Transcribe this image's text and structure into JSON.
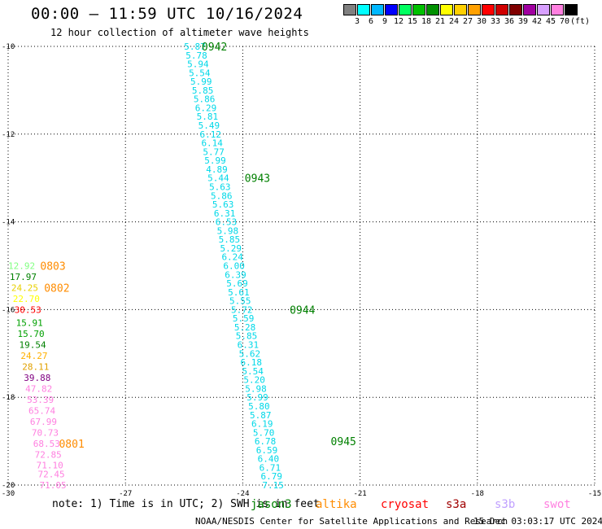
{
  "header": {
    "title": "00:00 – 11:59 UTC 10/16/2024",
    "subtitle": "12 hour collection of altimeter wave heights"
  },
  "color_scale": {
    "colors": [
      "#808080",
      "#00ffff",
      "#00b8ff",
      "#0000ff",
      "#00ff60",
      "#00c000",
      "#009000",
      "#ffff00",
      "#ffd000",
      "#ffa000",
      "#ff0000",
      "#d00000",
      "#800000",
      "#a000a0",
      "#d8a0ff",
      "#ff80e0",
      "#000000"
    ],
    "labels": [
      "3",
      "6",
      "9",
      "12",
      "15",
      "18",
      "21",
      "24",
      "27",
      "30",
      "33",
      "36",
      "39",
      "42",
      "45",
      "70",
      "(ft)"
    ]
  },
  "chart_data": {
    "type": "scatter",
    "title": "00:00 – 11:59 UTC 10/16/2024",
    "subtitle": "12 hour collection of altimeter wave heights",
    "xlim": [
      -30,
      -15
    ],
    "ylim": [
      -20,
      -10
    ],
    "x_ticks": [
      "-30",
      "-27",
      "-24",
      "-21",
      "-18",
      "-15"
    ],
    "y_ticks": [
      "-10",
      "-12",
      "-14",
      "-16",
      "-18",
      "-20"
    ],
    "grid": true,
    "tracks": [
      {
        "satellite": "jason3",
        "color": "#00d8e8",
        "points": [
          {
            "x": -25.5,
            "y": -10.0,
            "v": "5.87"
          },
          {
            "x": -25.46,
            "y": -10.2,
            "v": "5.78"
          },
          {
            "x": -25.42,
            "y": -10.4,
            "v": "5.94"
          },
          {
            "x": -25.38,
            "y": -10.6,
            "v": "5.54"
          },
          {
            "x": -25.34,
            "y": -10.8,
            "v": "5.99"
          },
          {
            "x": -25.3,
            "y": -11.0,
            "v": "5.85"
          },
          {
            "x": -25.26,
            "y": -11.2,
            "v": "5.86"
          },
          {
            "x": -25.22,
            "y": -11.4,
            "v": "6.29"
          },
          {
            "x": -25.18,
            "y": -11.6,
            "v": "5.81"
          },
          {
            "x": -25.14,
            "y": -11.8,
            "v": "5.49"
          },
          {
            "x": -25.1,
            "y": -12.0,
            "v": "6.12"
          },
          {
            "x": -25.06,
            "y": -12.2,
            "v": "6.14"
          },
          {
            "x": -25.02,
            "y": -12.4,
            "v": "5.77"
          },
          {
            "x": -24.98,
            "y": -12.6,
            "v": "5.99"
          },
          {
            "x": -24.94,
            "y": -12.8,
            "v": "4.89"
          },
          {
            "x": -24.9,
            "y": -13.0,
            "v": "5.44"
          },
          {
            "x": -24.86,
            "y": -13.2,
            "v": "5.63"
          },
          {
            "x": -24.82,
            "y": -13.4,
            "v": "5.86"
          },
          {
            "x": -24.78,
            "y": -13.6,
            "v": "5.63"
          },
          {
            "x": -24.74,
            "y": -13.8,
            "v": "6.31"
          },
          {
            "x": -24.7,
            "y": -14.0,
            "v": "6.53"
          },
          {
            "x": -24.66,
            "y": -14.2,
            "v": "5.98"
          },
          {
            "x": -24.62,
            "y": -14.4,
            "v": "5.85"
          },
          {
            "x": -24.58,
            "y": -14.6,
            "v": "5.29"
          },
          {
            "x": -24.54,
            "y": -14.8,
            "v": "6.24"
          },
          {
            "x": -24.5,
            "y": -15.0,
            "v": "6.00"
          },
          {
            "x": -24.46,
            "y": -15.2,
            "v": "6.39"
          },
          {
            "x": -24.42,
            "y": -15.4,
            "v": "5.69"
          },
          {
            "x": -24.38,
            "y": -15.6,
            "v": "5.61"
          },
          {
            "x": -24.34,
            "y": -15.8,
            "v": "5.55"
          },
          {
            "x": -24.3,
            "y": -16.0,
            "v": "5.72"
          },
          {
            "x": -24.26,
            "y": -16.2,
            "v": "5.59"
          },
          {
            "x": -24.22,
            "y": -16.4,
            "v": "5.28"
          },
          {
            "x": -24.18,
            "y": -16.6,
            "v": "5.85"
          },
          {
            "x": -24.14,
            "y": -16.8,
            "v": "6.31"
          },
          {
            "x": -24.1,
            "y": -17.0,
            "v": "5.62"
          },
          {
            "x": -24.06,
            "y": -17.2,
            "v": "6.18"
          },
          {
            "x": -24.02,
            "y": -17.4,
            "v": "5.54"
          },
          {
            "x": -23.98,
            "y": -17.6,
            "v": "5.20"
          },
          {
            "x": -23.94,
            "y": -17.8,
            "v": "5.98"
          },
          {
            "x": -23.9,
            "y": -18.0,
            "v": "5.99"
          },
          {
            "x": -23.86,
            "y": -18.2,
            "v": "5.80"
          },
          {
            "x": -23.82,
            "y": -18.4,
            "v": "5.87"
          },
          {
            "x": -23.78,
            "y": -18.6,
            "v": "6.19"
          },
          {
            "x": -23.74,
            "y": -18.8,
            "v": "5.70"
          },
          {
            "x": -23.7,
            "y": -19.0,
            "v": "6.78"
          },
          {
            "x": -23.66,
            "y": -19.2,
            "v": "6.59"
          },
          {
            "x": -23.62,
            "y": -19.4,
            "v": "6.40"
          },
          {
            "x": -23.58,
            "y": -19.6,
            "v": "6.71"
          },
          {
            "x": -23.54,
            "y": -19.8,
            "v": "6.79"
          },
          {
            "x": -23.5,
            "y": -20.0,
            "v": "7.15"
          }
        ],
        "time_labels": [
          {
            "x": -25.05,
            "y": -10.0,
            "t": "0942"
          },
          {
            "x": -23.95,
            "y": -13.0,
            "t": "0943"
          },
          {
            "x": -22.8,
            "y": -16.0,
            "t": "0944"
          },
          {
            "x": -21.75,
            "y": -19.0,
            "t": "0945"
          }
        ]
      },
      {
        "satellite": "altika",
        "color": "#ff8c00",
        "points": [
          {
            "x": -30.0,
            "y": -15.0,
            "v": "12.92",
            "c": "#80ff80"
          },
          {
            "x": -29.96,
            "y": -15.25,
            "v": "17.97",
            "c": "#008000"
          },
          {
            "x": -29.92,
            "y": -15.5,
            "v": "24.25",
            "c": "#e8d000"
          },
          {
            "x": -29.88,
            "y": -15.75,
            "v": "22.70",
            "c": "#ffff00"
          },
          {
            "x": -29.84,
            "y": -16.0,
            "v": "30.53",
            "c": "#ff0000"
          },
          {
            "x": -29.8,
            "y": -16.3,
            "v": "15.91",
            "c": "#00a000"
          },
          {
            "x": -29.76,
            "y": -16.55,
            "v": "15.70",
            "c": "#00a000"
          },
          {
            "x": -29.72,
            "y": -16.8,
            "v": "19.54",
            "c": "#008000"
          },
          {
            "x": -29.68,
            "y": -17.05,
            "v": "24.27",
            "c": "#ffb000"
          },
          {
            "x": -29.64,
            "y": -17.3,
            "v": "28.11",
            "c": "#e0a000"
          },
          {
            "x": -29.6,
            "y": -17.55,
            "v": "39.88",
            "c": "#800080"
          },
          {
            "x": -29.56,
            "y": -17.8,
            "v": "47.82",
            "c": "#ff80e0"
          },
          {
            "x": -29.52,
            "y": -18.05,
            "v": "53.39",
            "c": "#ff80e0"
          },
          {
            "x": -29.48,
            "y": -18.3,
            "v": "65.74",
            "c": "#ff80e0"
          },
          {
            "x": -29.44,
            "y": -18.55,
            "v": "67.99",
            "c": "#ff80e0"
          },
          {
            "x": -29.4,
            "y": -18.8,
            "v": "70.73",
            "c": "#ff80e0"
          },
          {
            "x": -29.36,
            "y": -19.05,
            "v": "68.53",
            "c": "#ff80e0"
          },
          {
            "x": -29.32,
            "y": -19.3,
            "v": "72.85",
            "c": "#ff80e0"
          },
          {
            "x": -29.28,
            "y": -19.55,
            "v": "71.10",
            "c": "#ff80e0"
          },
          {
            "x": -29.24,
            "y": -19.75,
            "v": "72.45",
            "c": "#ff80e0"
          },
          {
            "x": -29.2,
            "y": -20.0,
            "v": "71.05",
            "c": "#ff80e0"
          }
        ],
        "time_labels": [
          {
            "x": -29.18,
            "y": -15.0,
            "t": "0803"
          },
          {
            "x": -29.08,
            "y": -15.5,
            "t": "0802"
          },
          {
            "x": -28.7,
            "y": -19.05,
            "t": "0801"
          }
        ]
      }
    ]
  },
  "legend": {
    "note": "note: 1) Time is in UTC; 2) SWH is in feet",
    "satellites": [
      {
        "name": "jason3",
        "color": "#008000"
      },
      {
        "name": "altika",
        "color": "#ff8c00"
      },
      {
        "name": "cryosat",
        "color": "#ff0000"
      },
      {
        "name": "s3a",
        "color": "#a00000"
      },
      {
        "name": "s3b",
        "color": "#c0a0ff"
      },
      {
        "name": "swot",
        "color": "#ff80e0"
      }
    ]
  },
  "footer": {
    "org": "NOAA/NESDIS Center for Satellite Applications and Research",
    "timestamp": "15 Dec 03:03:17 UTC 2024"
  }
}
